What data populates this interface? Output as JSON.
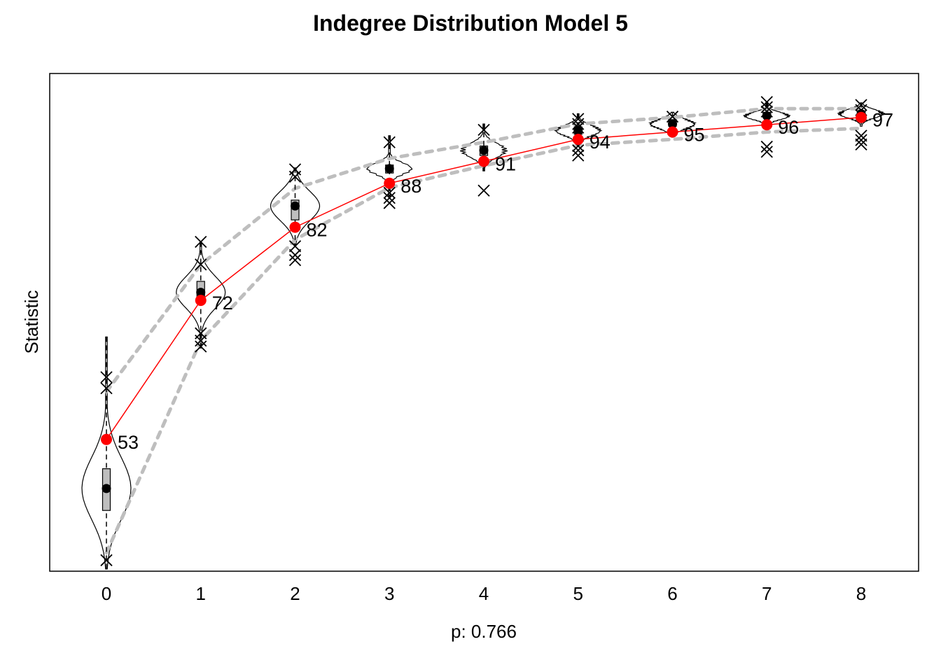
{
  "chart_data": {
    "type": "line",
    "title": "Indegree Distribution Model 5",
    "xlabel": "p: 0.766",
    "ylabel": "Statistic",
    "categories": [
      "0",
      "1",
      "2",
      "3",
      "4",
      "5",
      "6",
      "7",
      "8"
    ],
    "ylim": [
      35,
      103
    ],
    "grid": false,
    "legend": "none",
    "observed": {
      "color": "#ff0000",
      "values": [
        53,
        72,
        82,
        88,
        91,
        94,
        95,
        96,
        97
      ],
      "labels": [
        "53",
        "72",
        "82",
        "88",
        "91",
        "94",
        95,
        "96",
        "97"
      ]
    },
    "simulated_mean": [
      46.3,
      73.1,
      84.9,
      90.0,
      92.5,
      95.2,
      96.1,
      97.2,
      97.5
    ],
    "box": {
      "q1": [
        43.3,
        71.7,
        83.0,
        89.4,
        91.8,
        94.7,
        95.8,
        97.0,
        97.1
      ],
      "q3": [
        49.0,
        74.6,
        85.7,
        90.5,
        93.1,
        95.7,
        96.7,
        97.7,
        97.9
      ]
    },
    "whiskers": {
      "low": [
        35.3,
        65.5,
        79.5,
        86.2,
        89.7,
        93.3,
        94.3,
        95.9,
        95.8
      ],
      "high": [
        67.0,
        80.0,
        90.1,
        94.5,
        96.1,
        97.5,
        97.7,
        99.1,
        99.0
      ]
    },
    "outliers": [
      [
        36.5,
        60.0,
        61.5
      ],
      [
        67.5,
        65.7,
        66.5,
        76.9,
        80.0
      ],
      [
        77.5,
        78.2,
        79.4,
        88.9,
        89.9
      ],
      [
        85.3,
        86.0,
        86.7,
        93.6
      ],
      [
        87.0,
        95.3
      ],
      [
        91.8,
        92.5,
        93.1,
        95.6,
        96.1,
        96.8
      ],
      [
        97.1
      ],
      [
        92.3,
        93.0,
        97.8,
        98.4,
        99.1
      ],
      [
        93.3,
        93.9,
        94.5,
        97.3,
        98.0,
        98.7
      ]
    ],
    "band": {
      "color": "#bebebe",
      "upper": [
        59.5,
        76.9,
        87.3,
        91.4,
        93.6,
        96.1,
        97.0,
        98.2,
        98.2
      ],
      "lower": [
        37.5,
        66.5,
        80.3,
        87.4,
        90.4,
        93.2,
        94.0,
        95.0,
        95.5
      ]
    }
  }
}
